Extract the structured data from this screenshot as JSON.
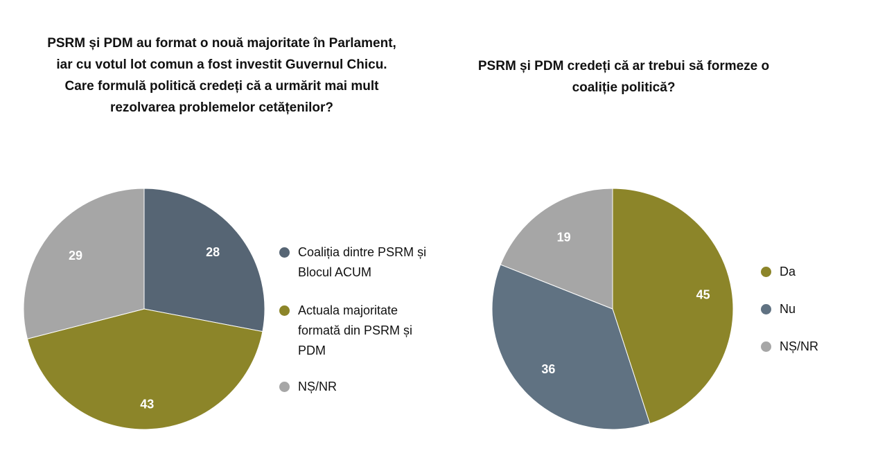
{
  "left_chart": {
    "title": "PSRM și PDM au format o nouă majoritate în Parlament,\niar cu votul lot comun a fost investit Guvernul Chicu.\nCare formulă politică credeți că a urmărit mai mult\nrezolvarea problemelor cetățenilor?",
    "legend": [
      "Coaliția dintre PSRM și\nBlocul ACUM",
      "Actuala majoritate\nformată din PSRM și\nPDM",
      "NȘ/NR"
    ]
  },
  "right_chart": {
    "title": "PSRM și PDM credeți că ar trebui să formeze o\ncoaliție politică?",
    "legend": [
      "Da",
      "Nu",
      "NȘ/NR"
    ]
  },
  "chart_data": [
    {
      "type": "pie",
      "title": "PSRM și PDM au format o nouă majoritate în Parlament, iar cu votul lot comun a fost investit Guvernul Chicu. Care formulă politică credeți că a urmărit mai mult rezolvarea problemelor cetățenilor?",
      "categories": [
        "Coaliția dintre PSRM și Blocul ACUM",
        "Actuala majoritate formată din PSRM și PDM",
        "NȘ/NR"
      ],
      "values": [
        28,
        43,
        29
      ],
      "data_labels": [
        "28",
        "43",
        "29"
      ],
      "colors": [
        "#566574",
        "#8c8529",
        "#a6a6a6"
      ],
      "legend_position": "right"
    },
    {
      "type": "pie",
      "title": "PSRM și PDM credeți că ar trebui să formeze o coaliție politică?",
      "categories": [
        "Da",
        "Nu",
        "NȘ/NR"
      ],
      "values": [
        45,
        36,
        19
      ],
      "data_labels": [
        "45",
        "36",
        "19"
      ],
      "colors": [
        "#8c8529",
        "#607282",
        "#a6a6a6"
      ],
      "legend_position": "right"
    }
  ]
}
